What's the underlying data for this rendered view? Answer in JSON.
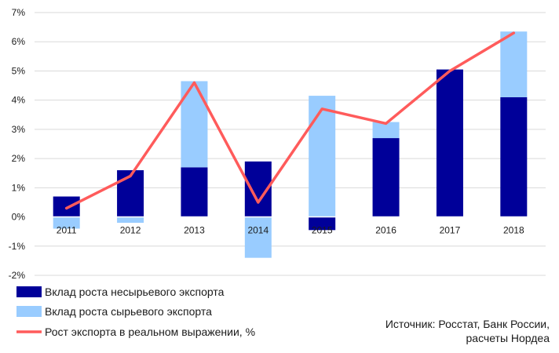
{
  "chart_data": {
    "type": "bar",
    "stacked": true,
    "categories": [
      "2011",
      "2012",
      "2013",
      "2014",
      "2015",
      "2016",
      "2017",
      "2018"
    ],
    "series": [
      {
        "name": "Вклад роста несырьевого экспорта",
        "kind": "bar",
        "color": "#000099",
        "values": [
          0.7,
          1.6,
          1.7,
          1.9,
          -0.45,
          2.7,
          5.05,
          4.1
        ]
      },
      {
        "name": "Вклад роста сырьевого экспорта",
        "kind": "bar",
        "color": "#99ccff",
        "values": [
          -0.4,
          -0.2,
          2.95,
          -1.4,
          4.15,
          0.55,
          0.0,
          2.25
        ]
      },
      {
        "name": "Рост экспорта в реальном выражении,  %",
        "kind": "line",
        "color": "#ff5b5b",
        "values": [
          0.3,
          1.4,
          4.6,
          0.5,
          3.7,
          3.2,
          5.0,
          6.3
        ]
      }
    ],
    "y_ticks": [
      "-2%",
      "-1%",
      "0%",
      "1%",
      "2%",
      "3%",
      "4%",
      "5%",
      "6%",
      "7%"
    ],
    "ylim": [
      -2,
      7
    ],
    "grid": true,
    "legend": "bottom-left"
  },
  "source": {
    "line1": "Источник:  Росстат, Банк России,",
    "line2": "расчеты Нордеа"
  }
}
